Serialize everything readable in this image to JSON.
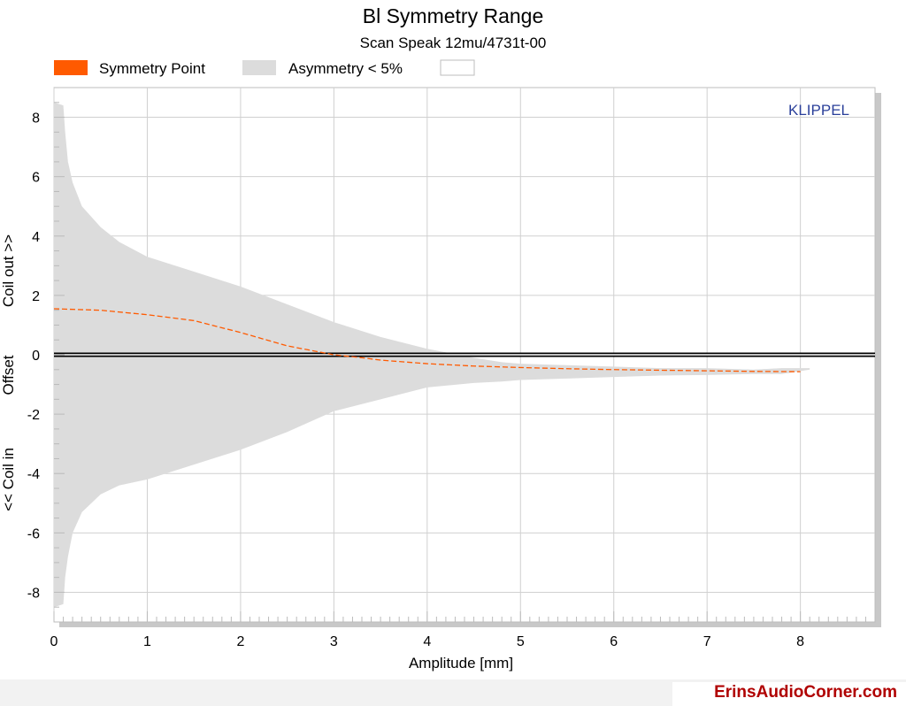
{
  "chart_data": {
    "type": "area",
    "title": "Bl Symmetry Range",
    "subtitle": "Scan Speak 12mu/4731t-00",
    "xlabel": "Amplitude [mm]",
    "ylabel_parts": [
      "<< Coil in",
      "Offset",
      "Coil out >>"
    ],
    "watermark_plot": "KLIPPEL",
    "xlim": [
      0,
      8.8
    ],
    "ylim": [
      -9,
      9
    ],
    "x_ticks": [
      0,
      1,
      2,
      3,
      4,
      5,
      6,
      7,
      8
    ],
    "y_ticks": [
      -8,
      -6,
      -4,
      -2,
      0,
      2,
      4,
      6,
      8
    ],
    "grid": true,
    "legend_position": "top",
    "legend": [
      {
        "label": "Symmetry Point",
        "color": "#ff5a00"
      },
      {
        "label": "Asymmetry < 5%",
        "color": "#dcdcdc"
      },
      {
        "label": "",
        "color": "#ffffff"
      }
    ],
    "series": [
      {
        "name": "Asymmetry < 5%",
        "kind": "band",
        "x": [
          0.0,
          0.1,
          0.12,
          0.15,
          0.2,
          0.3,
          0.5,
          0.7,
          1.0,
          1.5,
          2.0,
          2.5,
          3.0,
          3.5,
          4.0,
          4.5,
          4.8,
          5.0,
          5.5,
          6.0,
          6.5,
          7.0,
          7.5,
          7.8,
          8.1
        ],
        "upper": [
          8.5,
          8.4,
          7.5,
          6.5,
          5.8,
          5.0,
          4.3,
          3.8,
          3.3,
          2.8,
          2.3,
          1.7,
          1.1,
          0.6,
          0.2,
          -0.1,
          -0.25,
          -0.3,
          -0.35,
          -0.4,
          -0.45,
          -0.45,
          -0.5,
          -0.45,
          -0.45
        ],
        "lower": [
          -8.5,
          -8.4,
          -7.5,
          -6.8,
          -6.0,
          -5.3,
          -4.7,
          -4.4,
          -4.2,
          -3.7,
          -3.2,
          -2.6,
          -1.9,
          -1.5,
          -1.1,
          -0.95,
          -0.9,
          -0.85,
          -0.8,
          -0.75,
          -0.7,
          -0.68,
          -0.65,
          -0.65,
          -0.5
        ]
      },
      {
        "name": "Symmetry Point",
        "kind": "line",
        "color": "#ff5a00",
        "x": [
          0.0,
          0.5,
          1.0,
          1.5,
          2.0,
          2.5,
          3.0,
          3.3,
          3.5,
          4.0,
          4.5,
          5.0,
          5.5,
          6.0,
          6.5,
          7.0,
          7.5,
          8.0
        ],
        "y": [
          1.55,
          1.5,
          1.35,
          1.15,
          0.75,
          0.3,
          0.0,
          -0.1,
          -0.18,
          -0.3,
          -0.38,
          -0.43,
          -0.47,
          -0.5,
          -0.52,
          -0.54,
          -0.56,
          -0.57
        ]
      }
    ]
  },
  "footer": {
    "watermark": "ErinsAudioCorner.com"
  }
}
